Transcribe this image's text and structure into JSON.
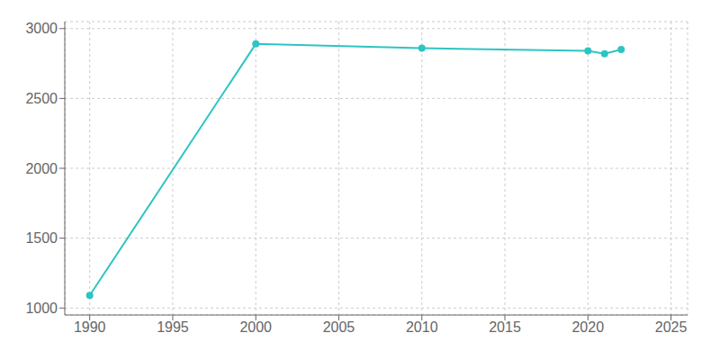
{
  "chart_data": {
    "type": "line",
    "x": [
      1990,
      2000,
      2010,
      2020,
      2021,
      2022
    ],
    "values": [
      1090,
      2890,
      2860,
      2840,
      2820,
      2850
    ],
    "color": "#2EC4C4",
    "marker": "o",
    "xlim": [
      1988.5,
      2026
    ],
    "xticks": [
      1990,
      1995,
      2000,
      2005,
      2010,
      2015,
      2020,
      2025
    ],
    "ylim": [
      950,
      3050
    ],
    "yticks": [
      1000,
      1500,
      2000,
      2500,
      3000
    ],
    "grid": true
  }
}
